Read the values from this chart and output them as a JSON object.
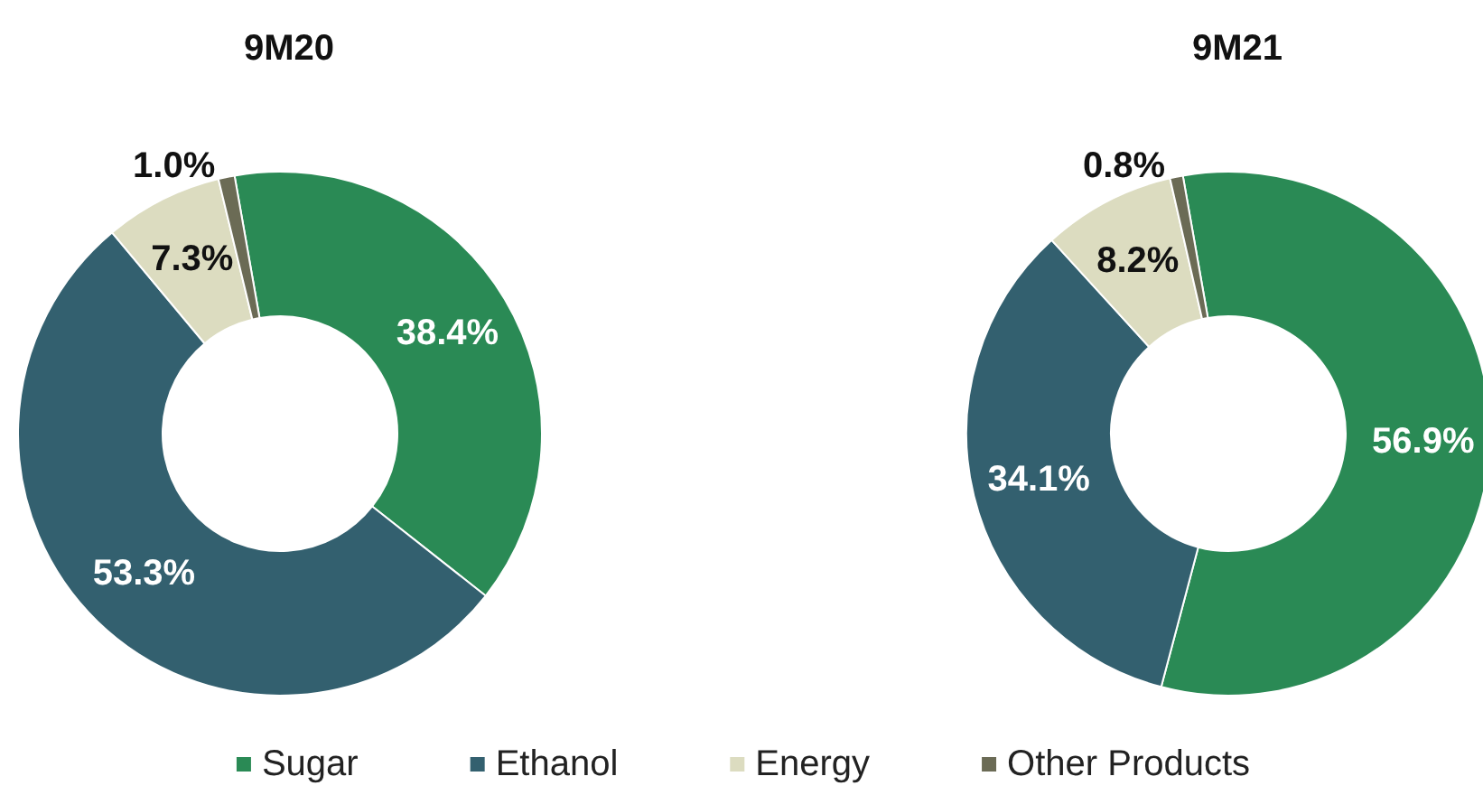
{
  "chart_data": {
    "type": "donut",
    "categories": [
      "Sugar",
      "Ethanol",
      "Energy",
      "Other Products"
    ],
    "colors": [
      "#2a8a55",
      "#33606f",
      "#dcdcc0",
      "#6b6b55"
    ],
    "legend": "bottom",
    "series": [
      {
        "name": "9M20",
        "values": [
          38.4,
          53.3,
          7.3,
          1.0
        ],
        "value_labels": [
          "38.4%",
          "53.3%",
          "7.3%",
          "1.0%"
        ]
      },
      {
        "name": "9M21",
        "values": [
          56.9,
          34.1,
          8.2,
          0.8
        ],
        "value_labels": [
          "56.9%",
          "34.1%",
          "8.2%",
          "0.8%"
        ]
      }
    ]
  }
}
